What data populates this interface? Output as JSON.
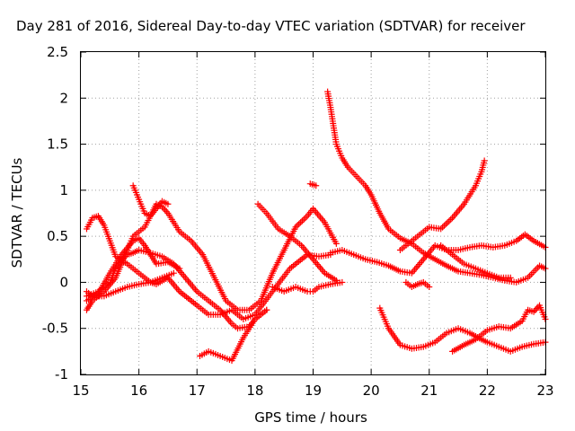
{
  "chart_data": {
    "type": "scatter",
    "title": "Day 281 of 2016, Sidereal Day-to-day VTEC variation (SDTVAR) for receiver",
    "xlabel": "GPS time / hours",
    "ylabel": "SDTVAR / TECUs",
    "xlim": [
      15,
      23
    ],
    "ylim": [
      -1,
      2.5
    ],
    "x_ticks": [
      "15",
      "16",
      "17",
      "18",
      "19",
      "20",
      "21",
      "22",
      "23"
    ],
    "y_ticks": [
      "-1",
      "-0.5",
      "0",
      "0.5",
      "1",
      "1.5",
      "2",
      "2.5"
    ],
    "grid": true,
    "marker": "+",
    "marker_color": "#ff0000",
    "series": [
      {
        "x": [
          15.1,
          15.2,
          15.3,
          15.4,
          15.5,
          15.6,
          15.8,
          16.0,
          16.2,
          16.3,
          16.5,
          16.7,
          17.0,
          17.2,
          17.4,
          17.6,
          17.8,
          18.0,
          18.3,
          18.6,
          18.9,
          19.1,
          19.3
        ],
        "y": [
          0.58,
          0.7,
          0.72,
          0.62,
          0.45,
          0.28,
          0.2,
          0.1,
          0.0,
          -0.02,
          0.05,
          -0.1,
          -0.25,
          -0.35,
          -0.35,
          -0.3,
          -0.4,
          -0.35,
          -0.1,
          0.15,
          0.3,
          0.28,
          0.3
        ]
      },
      {
        "x": [
          15.1,
          15.2,
          15.4,
          15.6,
          15.8,
          15.9,
          16.0,
          16.1,
          16.2,
          16.3,
          16.4,
          16.5,
          16.7,
          16.9,
          17.1,
          17.3,
          17.5,
          17.7,
          17.9,
          18.1,
          18.3,
          18.5,
          18.7,
          18.9,
          19.0,
          19.2,
          19.4
        ],
        "y": [
          -0.3,
          -0.2,
          -0.1,
          0.05,
          0.35,
          0.5,
          0.55,
          0.6,
          0.72,
          0.85,
          0.82,
          0.75,
          0.55,
          0.45,
          0.3,
          0.05,
          -0.2,
          -0.3,
          -0.3,
          -0.2,
          0.1,
          0.35,
          0.6,
          0.72,
          0.8,
          0.65,
          0.42
        ]
      },
      {
        "x": [
          15.1,
          15.3,
          15.5,
          15.6,
          15.7,
          15.8,
          15.9,
          16.0,
          16.2,
          16.4,
          16.6,
          16.8,
          17.0,
          17.2,
          17.4,
          17.6,
          17.7,
          17.9,
          18.0,
          18.2
        ],
        "y": [
          -0.15,
          -0.1,
          0.0,
          0.15,
          0.25,
          0.3,
          0.32,
          0.35,
          0.32,
          0.28,
          0.2,
          0.05,
          -0.1,
          -0.2,
          -0.3,
          -0.45,
          -0.5,
          -0.48,
          -0.4,
          -0.3
        ]
      },
      {
        "x": [
          15.1,
          15.3,
          15.5,
          15.7,
          15.9,
          16.0,
          16.1,
          16.2,
          16.3,
          16.5,
          16.7
        ],
        "y": [
          -0.2,
          -0.12,
          0.1,
          0.3,
          0.45,
          0.48,
          0.4,
          0.3,
          0.2,
          0.22,
          0.15
        ]
      },
      {
        "x": [
          15.1,
          15.2,
          15.4,
          15.6,
          15.8,
          16.0,
          16.2,
          16.4,
          16.6
        ],
        "y": [
          -0.1,
          -0.15,
          -0.15,
          -0.1,
          -0.05,
          -0.02,
          0.0,
          0.05,
          0.1
        ]
      },
      {
        "x": [
          15.9,
          16.0,
          16.1,
          16.2,
          16.3,
          16.4,
          16.5
        ],
        "y": [
          1.05,
          0.9,
          0.75,
          0.72,
          0.8,
          0.88,
          0.85
        ]
      },
      {
        "x": [
          18.05,
          18.2,
          18.4,
          18.6,
          18.8,
          19.0,
          19.2,
          19.4
        ],
        "y": [
          0.85,
          0.75,
          0.58,
          0.5,
          0.4,
          0.25,
          0.1,
          0.02
        ]
      },
      {
        "x": [
          18.3,
          18.5,
          18.7,
          18.9,
          19.0,
          19.1,
          19.3,
          19.5
        ],
        "y": [
          -0.05,
          -0.1,
          -0.05,
          -0.1,
          -0.1,
          -0.05,
          -0.02,
          0.0
        ]
      },
      {
        "x": [
          17.05,
          17.2,
          17.4,
          17.6,
          17.8,
          18.0,
          18.2
        ],
        "y": [
          -0.8,
          -0.75,
          -0.8,
          -0.85,
          -0.6,
          -0.4,
          -0.3
        ]
      },
      {
        "x": [
          18.95,
          19.05
        ],
        "y": [
          1.07,
          1.05
        ]
      },
      {
        "x": [
          19.25,
          19.3,
          19.35,
          19.4,
          19.5,
          19.6,
          19.75,
          19.9,
          20.0,
          20.15,
          20.3,
          20.5,
          20.7,
          20.9,
          21.1,
          21.3,
          21.5,
          21.7,
          21.9,
          22.1,
          22.3,
          22.5,
          22.7,
          22.9,
          23.0
        ],
        "y": [
          2.07,
          1.9,
          1.7,
          1.5,
          1.35,
          1.25,
          1.15,
          1.05,
          0.95,
          0.75,
          0.58,
          0.48,
          0.42,
          0.32,
          0.25,
          0.18,
          0.12,
          0.1,
          0.08,
          0.05,
          0.02,
          0.0,
          0.05,
          0.18,
          0.15
        ]
      },
      {
        "x": [
          19.3,
          19.5,
          19.7,
          19.9,
          20.1,
          20.3,
          20.5,
          20.7,
          20.9,
          21.1,
          21.3,
          21.5,
          21.7,
          21.9,
          22.1,
          22.3,
          22.5,
          22.65,
          22.8,
          23.0
        ],
        "y": [
          0.32,
          0.35,
          0.3,
          0.25,
          0.22,
          0.18,
          0.12,
          0.1,
          0.25,
          0.4,
          0.35,
          0.35,
          0.38,
          0.4,
          0.38,
          0.4,
          0.45,
          0.52,
          0.45,
          0.38
        ]
      },
      {
        "x": [
          20.5,
          20.7,
          20.9,
          21.0,
          21.2,
          21.4,
          21.6,
          21.8,
          21.9,
          21.95
        ],
        "y": [
          0.35,
          0.45,
          0.55,
          0.6,
          0.58,
          0.7,
          0.85,
          1.05,
          1.2,
          1.32
        ]
      },
      {
        "x": [
          20.6,
          20.7,
          20.8,
          20.9,
          21.0
        ],
        "y": [
          0.0,
          -0.05,
          -0.02,
          0.0,
          -0.05
        ]
      },
      {
        "x": [
          20.15,
          20.3,
          20.5,
          20.7,
          20.9,
          21.1,
          21.3,
          21.5,
          21.7,
          21.9,
          22.0,
          22.2,
          22.4,
          22.6,
          22.8,
          23.0
        ],
        "y": [
          -0.28,
          -0.5,
          -0.68,
          -0.72,
          -0.7,
          -0.65,
          -0.55,
          -0.5,
          -0.55,
          -0.62,
          -0.65,
          -0.7,
          -0.75,
          -0.7,
          -0.67,
          -0.65
        ]
      },
      {
        "x": [
          21.4,
          21.6,
          21.8,
          22.0,
          22.2,
          22.4,
          22.6,
          22.7,
          22.8,
          22.9,
          23.0
        ],
        "y": [
          -0.75,
          -0.68,
          -0.62,
          -0.52,
          -0.48,
          -0.5,
          -0.42,
          -0.3,
          -0.32,
          -0.25,
          -0.4
        ]
      },
      {
        "x": [
          21.2,
          21.4,
          21.6,
          21.8,
          22.0,
          22.2,
          22.4
        ],
        "y": [
          0.4,
          0.3,
          0.2,
          0.15,
          0.1,
          0.05,
          0.05
        ]
      }
    ]
  }
}
